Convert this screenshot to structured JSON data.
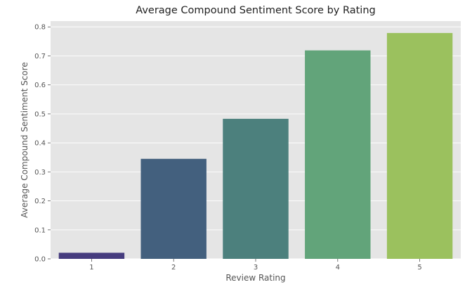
{
  "chart_data": {
    "type": "bar",
    "title": "Average Compound Sentiment Score by Rating",
    "xlabel": "Review Rating",
    "ylabel": "Average Compound Sentiment Score",
    "categories": [
      "1",
      "2",
      "3",
      "4",
      "5"
    ],
    "values": [
      0.021,
      0.345,
      0.483,
      0.719,
      0.779
    ],
    "colors": [
      "#463c7e",
      "#43607e",
      "#4c807d",
      "#62a47a",
      "#9bc15e"
    ],
    "ylim": [
      0,
      0.82
    ],
    "yticks": [
      0.0,
      0.1,
      0.2,
      0.3,
      0.4,
      0.5,
      0.6,
      0.7,
      0.8
    ],
    "ytick_labels": [
      "0.0",
      "0.1",
      "0.2",
      "0.3",
      "0.4",
      "0.5",
      "0.6",
      "0.7",
      "0.8"
    ],
    "grid": true,
    "background": "#e5e5e5"
  }
}
